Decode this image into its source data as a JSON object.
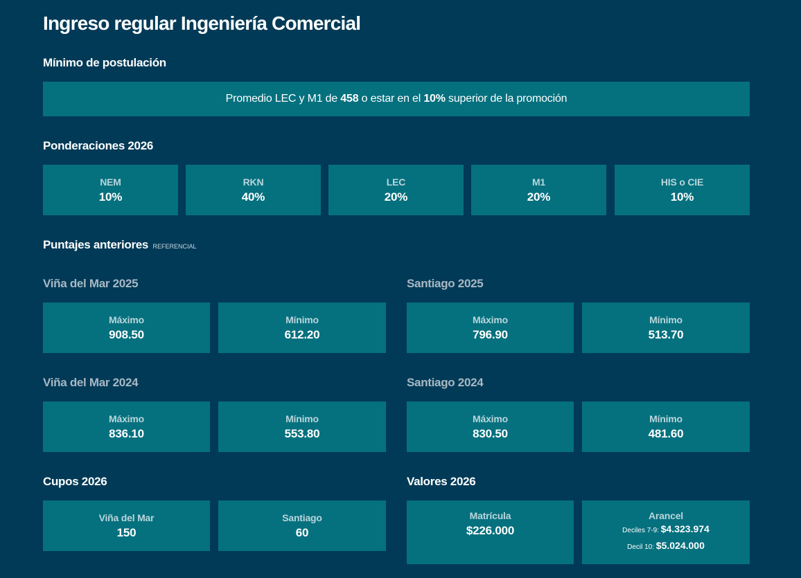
{
  "title": "Ingreso regular Ingeniería Comercial",
  "minimo": {
    "label": "Mínimo de postulación",
    "text_pre": "Promedio LEC y M1 de ",
    "score": "458",
    "text_mid": " o estar en el ",
    "percent": "10%",
    "text_post": " superior de la promoción"
  },
  "ponderaciones": {
    "label": "Ponderaciones 2026",
    "items": [
      {
        "name": "NEM",
        "value": "10%"
      },
      {
        "name": "RKN",
        "value": "40%"
      },
      {
        "name": "LEC",
        "value": "20%"
      },
      {
        "name": "M1",
        "value": "20%"
      },
      {
        "name": "HIS o CIE",
        "value": "10%"
      }
    ]
  },
  "puntajes": {
    "label": "Puntajes anteriores",
    "tag": "REFERENCIAL",
    "max_label": "Máximo",
    "min_label": "Mínimo",
    "groups": [
      {
        "title": "Viña del Mar 2025",
        "max": "908.50",
        "min": "612.20"
      },
      {
        "title": "Santiago 2025",
        "max": "796.90",
        "min": "513.70"
      },
      {
        "title": "Viña del Mar 2024",
        "max": "836.10",
        "min": "553.80"
      },
      {
        "title": "Santiago 2024",
        "max": "830.50",
        "min": "481.60"
      }
    ]
  },
  "cupos": {
    "label": "Cupos 2026",
    "items": [
      {
        "name": "Viña del Mar",
        "value": "150"
      },
      {
        "name": "Santiago",
        "value": "60"
      }
    ]
  },
  "valores": {
    "label": "Valores 2026",
    "matricula_label": "Matrícula",
    "matricula_value": "$226.000",
    "arancel_label": "Arancel",
    "decil_79_label": "Deciles 7-9: ",
    "decil_79_value": "$4.323.974",
    "decil_10_label": "Decil 10: ",
    "decil_10_value": "$5.024.000"
  }
}
